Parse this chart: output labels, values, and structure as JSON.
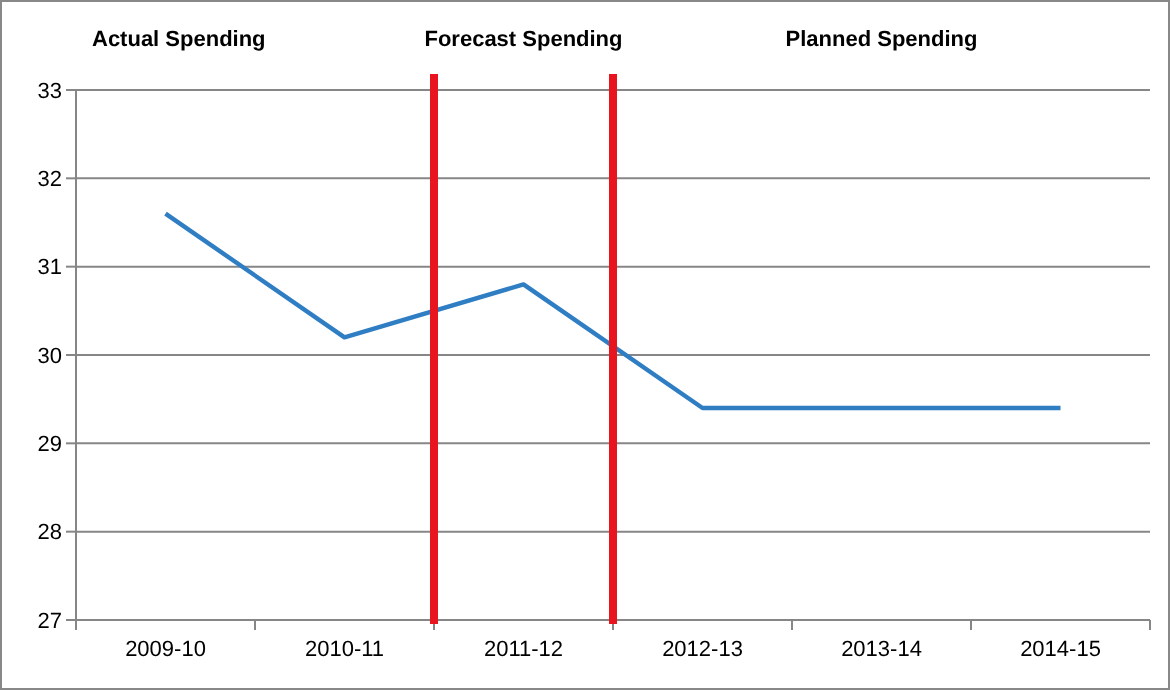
{
  "chart_data": {
    "type": "line",
    "categories": [
      "2009-10",
      "2010-11",
      "2011-12",
      "2012-13",
      "2013-14",
      "2014-15"
    ],
    "series": [
      {
        "color": "#2f7ec4",
        "values": [
          31.6,
          30.2,
          30.8,
          29.4,
          29.4,
          29.4
        ]
      }
    ],
    "ylim": [
      27,
      33
    ],
    "yticks": [
      27,
      28,
      29,
      30,
      31,
      32,
      33
    ],
    "grid": "y",
    "marker": "none",
    "line_style": "solid",
    "annotations": [
      "Actual Spending",
      "Forecast Spending",
      "Planned Spending"
    ]
  }
}
